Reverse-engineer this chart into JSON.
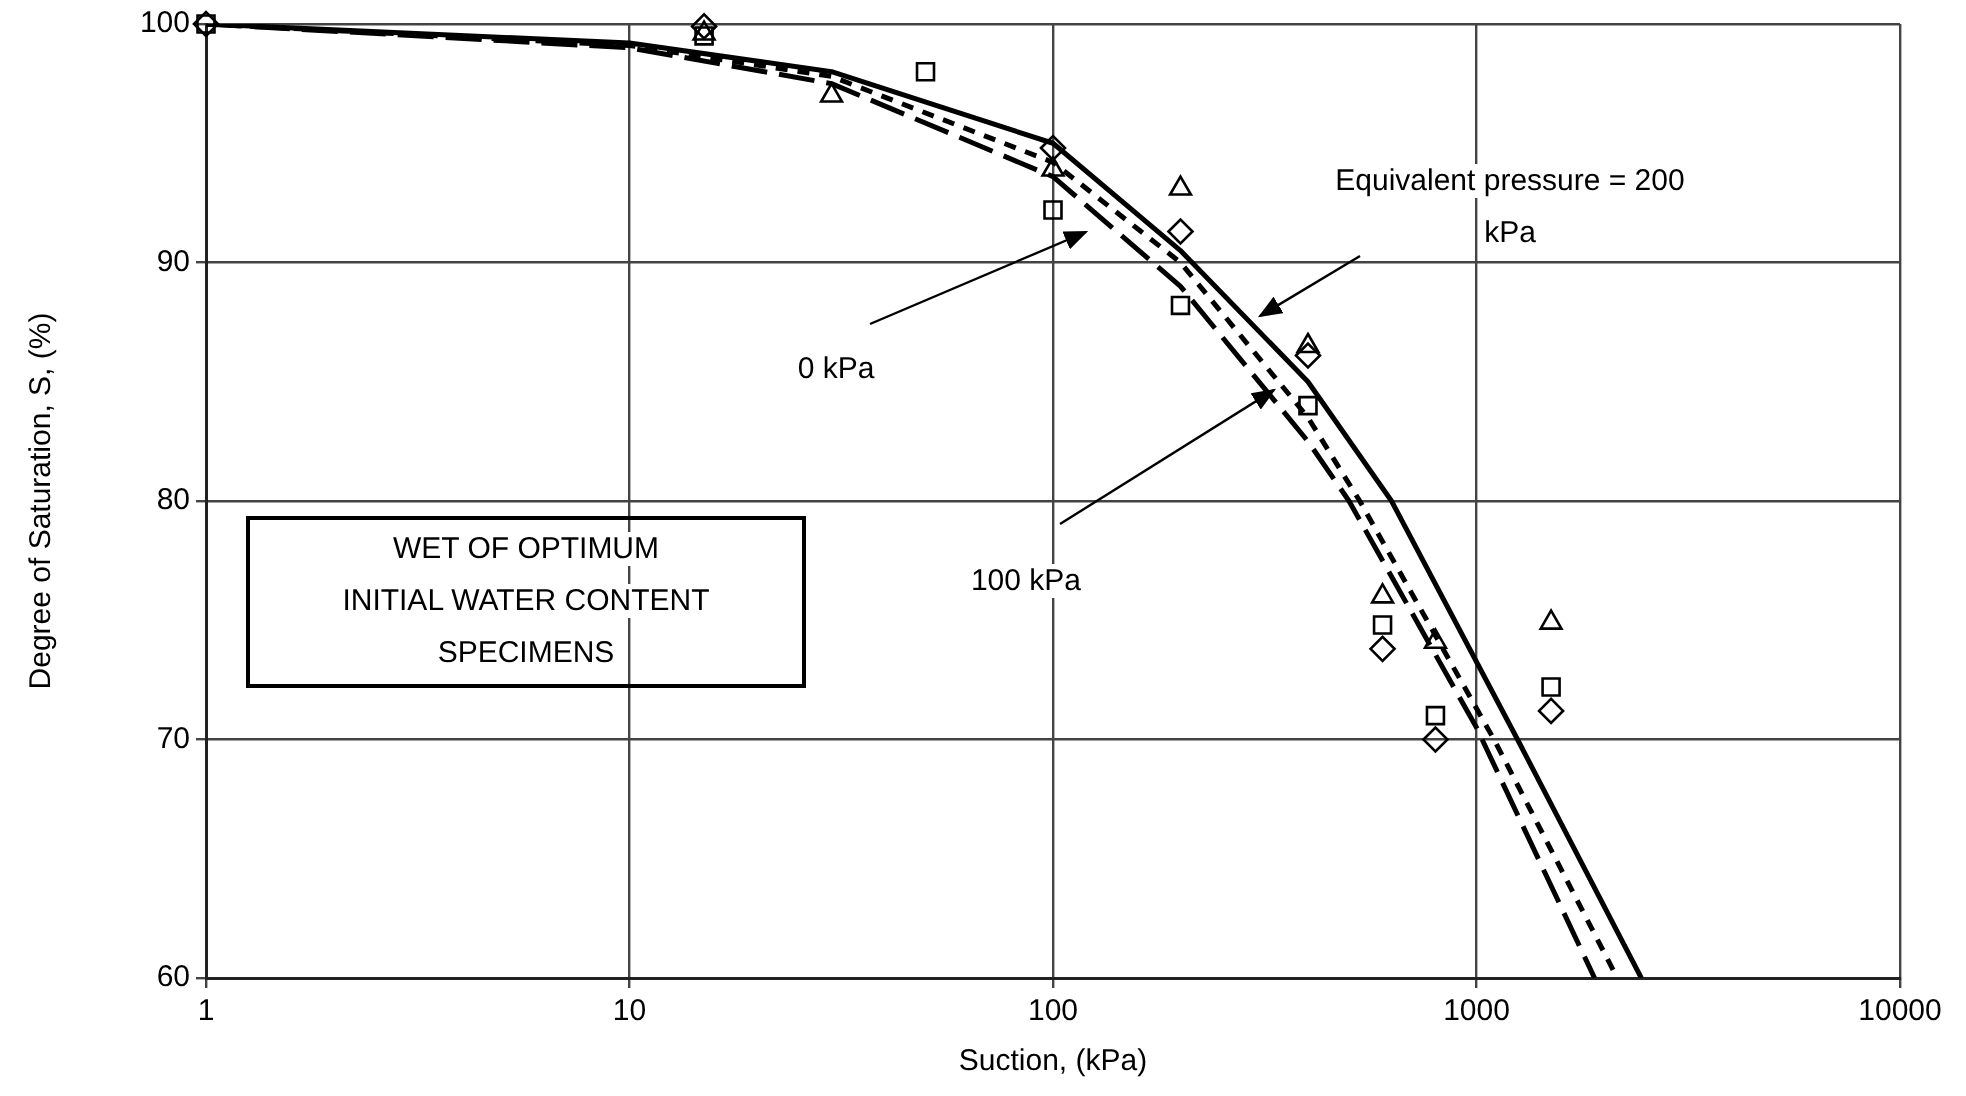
{
  "chart_data": {
    "type": "line",
    "xlabel": "Suction, (kPa)",
    "ylabel": "Degree of Saturation, S, (%)",
    "log": "x",
    "xlim": [
      1,
      10000
    ],
    "xticks": [
      1,
      10,
      100,
      1000,
      10000
    ],
    "ylim": [
      60,
      100
    ],
    "yticks": [
      60,
      70,
      80,
      90,
      100
    ],
    "grid": true,
    "legend": false,
    "annotations": [
      "Equivalent pressure = 200 kPa",
      "0 kPa",
      "100 kPa",
      "WET OF OPTIMUM\nINITIAL WATER CONTENT\nSPECIMENS"
    ],
    "series": [
      {
        "type": "line",
        "color": "#000000",
        "line_style": "solid",
        "marker": "none",
        "x": [
          1,
          10,
          30,
          100,
          200,
          400,
          630,
          1250,
          2450
        ],
        "values": [
          100,
          99.2,
          98,
          95,
          90.5,
          85,
          80,
          70,
          60
        ]
      },
      {
        "type": "line",
        "color": "#000000",
        "line_style": "dashed",
        "marker": "none",
        "x": [
          1,
          10,
          30,
          100,
          200,
          400,
          500,
          1000,
          1900
        ],
        "values": [
          100,
          99,
          97.5,
          93.6,
          89,
          82.5,
          80,
          70.5,
          60
        ]
      },
      {
        "type": "line",
        "color": "#000000",
        "line_style": "dotted",
        "marker": "none",
        "x": [
          1,
          10,
          30,
          100,
          200,
          400,
          530,
          1100,
          2150
        ],
        "values": [
          100,
          99.1,
          97.8,
          94.2,
          90,
          83.5,
          80,
          70,
          60
        ]
      },
      {
        "type": "scatter",
        "color": "#000000",
        "marker": "diamond",
        "x": [
          1,
          15,
          100,
          200,
          400,
          600,
          800,
          1500
        ],
        "values": [
          100,
          99.9,
          94.8,
          91.3,
          86.1,
          73.8,
          70,
          71.2
        ]
      },
      {
        "type": "scatter",
        "color": "#000000",
        "marker": "square",
        "x": [
          1,
          15,
          50,
          100,
          200,
          400,
          600,
          800,
          1500
        ],
        "values": [
          100,
          99.5,
          98,
          92.2,
          88.2,
          84,
          74.8,
          71,
          72.2
        ]
      },
      {
        "type": "scatter",
        "color": "#000000",
        "marker": "triangle",
        "x": [
          15,
          30,
          100,
          200,
          400,
          600,
          800,
          1500
        ],
        "values": [
          99.6,
          97,
          93.9,
          93.1,
          86.5,
          76,
          74.1,
          74.9
        ]
      }
    ]
  }
}
